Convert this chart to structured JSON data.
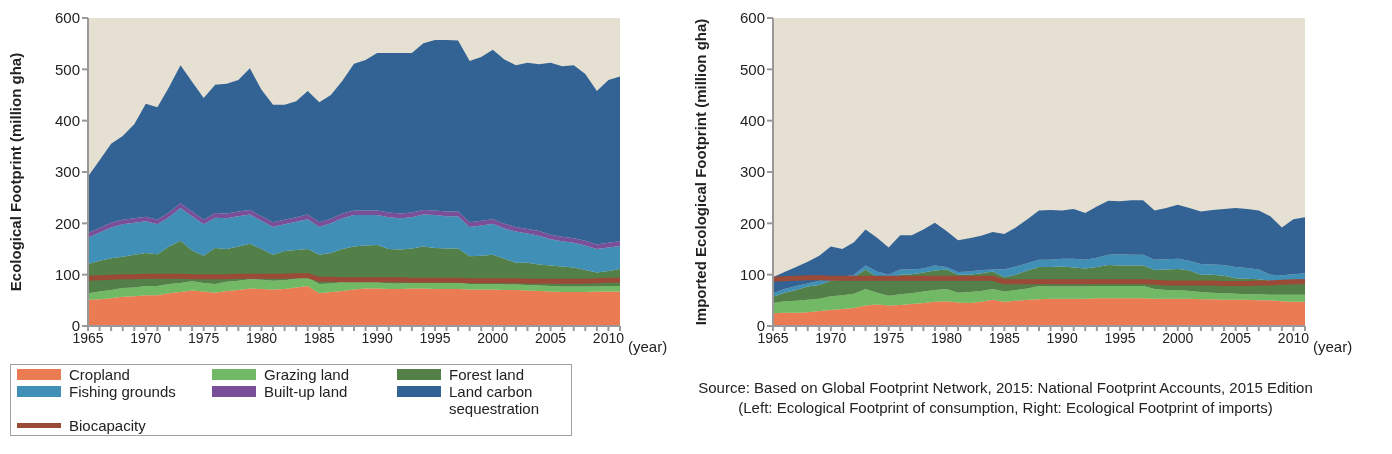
{
  "chart_data": [
    {
      "type": "area",
      "stacked": true,
      "xlabel": "(year)",
      "ylabel": "Ecological Footprint (million gha)",
      "legend": "bottom",
      "x": [
        1965,
        1966,
        1967,
        1968,
        1969,
        1970,
        1971,
        1972,
        1973,
        1974,
        1975,
        1976,
        1977,
        1978,
        1979,
        1980,
        1981,
        1982,
        1983,
        1984,
        1985,
        1986,
        1987,
        1988,
        1989,
        1990,
        1991,
        1992,
        1993,
        1994,
        1995,
        1996,
        1997,
        1998,
        1999,
        2000,
        2001,
        2002,
        2003,
        2004,
        2005,
        2006,
        2007,
        2008,
        2009,
        2010,
        2011
      ],
      "xlim": [
        1965,
        2011
      ],
      "xticks": [
        1965,
        {
          "value": 1966,
          "label": null
        },
        {
          "value": 1967,
          "label": null
        },
        {
          "value": 1968,
          "label": null
        },
        {
          "value": 1969,
          "label": null
        },
        1970,
        {
          "value": 1971,
          "label": null
        },
        {
          "value": 1972,
          "label": null
        },
        {
          "value": 1973,
          "label": null
        },
        {
          "value": 1974,
          "label": null
        },
        1975,
        {
          "value": 1976,
          "label": null
        },
        {
          "value": 1977,
          "label": null
        },
        {
          "value": 1978,
          "label": null
        },
        {
          "value": 1979,
          "label": null
        },
        1980,
        {
          "value": 1981,
          "label": null
        },
        {
          "value": 1982,
          "label": null
        },
        {
          "value": 1983,
          "label": null
        },
        {
          "value": 1984,
          "label": null
        },
        1985,
        {
          "value": 1986,
          "label": null
        },
        {
          "value": 1987,
          "label": null
        },
        {
          "value": 1988,
          "label": null
        },
        {
          "value": 1989,
          "label": null
        },
        1990,
        {
          "value": 1991,
          "label": null
        },
        {
          "value": 1992,
          "label": null
        },
        {
          "value": 1993,
          "label": null
        },
        {
          "value": 1994,
          "label": null
        },
        1995,
        {
          "value": 1996,
          "label": null
        },
        {
          "value": 1997,
          "label": null
        },
        {
          "value": 1998,
          "label": null
        },
        {
          "value": 1999,
          "label": null
        },
        2000,
        {
          "value": 2001,
          "label": null
        },
        {
          "value": 2002,
          "label": null
        },
        {
          "value": 2003,
          "label": null
        },
        {
          "value": 2004,
          "label": null
        },
        2005,
        {
          "value": 2006,
          "label": null
        },
        {
          "value": 2007,
          "label": null
        },
        {
          "value": 2008,
          "label": null
        },
        {
          "value": 2009,
          "label": null
        },
        2010,
        {
          "value": 2011,
          "label": null
        }
      ],
      "ylim": [
        0,
        600
      ],
      "yticks": [
        0,
        100,
        200,
        300,
        400,
        500,
        600
      ],
      "series": [
        {
          "name": "Cropland",
          "color": "#eb7b52",
          "values": [
            51,
            52,
            54,
            57,
            58,
            60,
            60,
            64,
            66,
            69,
            67,
            65,
            68,
            70,
            73,
            72,
            71,
            72,
            75,
            78,
            64,
            66,
            68,
            71,
            73,
            73,
            72,
            72,
            73,
            73,
            72,
            72,
            72,
            71,
            71,
            71,
            70,
            70,
            69,
            68,
            67,
            66,
            66,
            66,
            67,
            67,
            67
          ]
        },
        {
          "name": "Grazing land",
          "color": "#72b965",
          "values": [
            13,
            15,
            16,
            17,
            17,
            18,
            18,
            18,
            18,
            18,
            17,
            17,
            18,
            18,
            18,
            18,
            17,
            17,
            17,
            17,
            18,
            17,
            17,
            14,
            12,
            12,
            11,
            11,
            11,
            11,
            12,
            12,
            12,
            11,
            11,
            11,
            11,
            11,
            11,
            11,
            11,
            11,
            11,
            11,
            10,
            11,
            11
          ]
        },
        {
          "name": "Forest land",
          "color": "#528048",
          "values": [
            57,
            60,
            62,
            61,
            64,
            64,
            62,
            73,
            82,
            60,
            53,
            70,
            64,
            67,
            69,
            60,
            51,
            57,
            56,
            55,
            57,
            59,
            65,
            70,
            72,
            73,
            67,
            66,
            67,
            71,
            68,
            67,
            67,
            54,
            55,
            57,
            50,
            42,
            43,
            41,
            40,
            39,
            37,
            32,
            27,
            29,
            33
          ]
        },
        {
          "name": "Fishing grounds",
          "color": "#3f8fb7",
          "values": [
            51,
            55,
            60,
            63,
            62,
            62,
            58,
            57,
            64,
            67,
            61,
            59,
            60,
            59,
            57,
            55,
            54,
            52,
            55,
            58,
            54,
            58,
            60,
            61,
            59,
            58,
            62,
            61,
            61,
            62,
            64,
            63,
            63,
            57,
            59,
            60,
            59,
            61,
            57,
            56,
            51,
            49,
            48,
            48,
            46,
            46,
            45
          ]
        },
        {
          "name": "Built-up land",
          "color": "#7a4f9a",
          "values": [
            9,
            9,
            9,
            9,
            9,
            9,
            9,
            9,
            9,
            9,
            9,
            9,
            9,
            9,
            9,
            9,
            9,
            9,
            9,
            9,
            9,
            9,
            9,
            9,
            9,
            9,
            9,
            9,
            9,
            9,
            9,
            9,
            9,
            9,
            9,
            9,
            9,
            9,
            9,
            9,
            9,
            9,
            9,
            9,
            9,
            9,
            9
          ]
        },
        {
          "name": "Land carbon sequestration",
          "color": "#336294",
          "values": [
            110,
            132,
            154,
            163,
            183,
            220,
            219,
            244,
            269,
            253,
            237,
            250,
            253,
            256,
            276,
            246,
            229,
            224,
            226,
            241,
            234,
            241,
            259,
            286,
            293,
            307,
            311,
            313,
            311,
            325,
            332,
            334,
            333,
            314,
            319,
            330,
            320,
            315,
            324,
            325,
            335,
            332,
            337,
            325,
            299,
            317,
            321
          ]
        },
        {
          "name": "Biocapacity",
          "type": "line",
          "color": "#9c4a38",
          "values": [
            93,
            94,
            95,
            96,
            96,
            97,
            97,
            97,
            97,
            96,
            96,
            96,
            96,
            97,
            97,
            97,
            97,
            97,
            98,
            98,
            91,
            91,
            90,
            90,
            90,
            90,
            90,
            90,
            89,
            89,
            89,
            89,
            89,
            88,
            88,
            88,
            88,
            88,
            87,
            87,
            87,
            87,
            87,
            87,
            88,
            89,
            89
          ]
        }
      ]
    },
    {
      "type": "area",
      "stacked": true,
      "xlabel": "(year)",
      "ylabel": "Imported Ecological Footprint (million gha)",
      "annotations": [
        "Source: Based on Global Footprint Network, 2015: National Footprint Accounts, 2015 Edition",
        "(Left: Ecological Footprint of consumption, Right: Ecological Footprint of imports)"
      ],
      "x": [
        1965,
        1966,
        1967,
        1968,
        1969,
        1970,
        1971,
        1972,
        1973,
        1974,
        1975,
        1976,
        1977,
        1978,
        1979,
        1980,
        1981,
        1982,
        1983,
        1984,
        1985,
        1986,
        1987,
        1988,
        1989,
        1990,
        1991,
        1992,
        1993,
        1994,
        1995,
        1996,
        1997,
        1998,
        1999,
        2000,
        2001,
        2002,
        2003,
        2004,
        2005,
        2006,
        2007,
        2008,
        2009,
        2010,
        2011
      ],
      "xlim": [
        1965,
        2011
      ],
      "xticks": [
        1965,
        {
          "value": 1966,
          "label": null
        },
        {
          "value": 1967,
          "label": null
        },
        {
          "value": 1968,
          "label": null
        },
        {
          "value": 1969,
          "label": null
        },
        1970,
        {
          "value": 1971,
          "label": null
        },
        {
          "value": 1972,
          "label": null
        },
        {
          "value": 1973,
          "label": null
        },
        {
          "value": 1974,
          "label": null
        },
        1975,
        {
          "value": 1976,
          "label": null
        },
        {
          "value": 1977,
          "label": null
        },
        {
          "value": 1978,
          "label": null
        },
        {
          "value": 1979,
          "label": null
        },
        1980,
        {
          "value": 1981,
          "label": null
        },
        {
          "value": 1982,
          "label": null
        },
        {
          "value": 1983,
          "label": null
        },
        {
          "value": 1984,
          "label": null
        },
        1985,
        {
          "value": 1986,
          "label": null
        },
        {
          "value": 1987,
          "label": null
        },
        {
          "value": 1988,
          "label": null
        },
        {
          "value": 1989,
          "label": null
        },
        1990,
        {
          "value": 1991,
          "label": null
        },
        {
          "value": 1992,
          "label": null
        },
        {
          "value": 1993,
          "label": null
        },
        {
          "value": 1994,
          "label": null
        },
        1995,
        {
          "value": 1996,
          "label": null
        },
        {
          "value": 1997,
          "label": null
        },
        {
          "value": 1998,
          "label": null
        },
        {
          "value": 1999,
          "label": null
        },
        2000,
        {
          "value": 2001,
          "label": null
        },
        {
          "value": 2002,
          "label": null
        },
        {
          "value": 2003,
          "label": null
        },
        {
          "value": 2004,
          "label": null
        },
        2005,
        {
          "value": 2006,
          "label": null
        },
        {
          "value": 2007,
          "label": null
        },
        {
          "value": 2008,
          "label": null
        },
        {
          "value": 2009,
          "label": null
        },
        2010,
        {
          "value": 2011,
          "label": null
        }
      ],
      "ylim": [
        0,
        600
      ],
      "yticks": [
        0,
        100,
        200,
        300,
        400,
        500,
        600
      ],
      "series": [
        {
          "color": "#eb7b52",
          "values": [
            25,
            26,
            26,
            27,
            29,
            31,
            33,
            35,
            40,
            42,
            40,
            41,
            43,
            45,
            47,
            48,
            46,
            45,
            47,
            51,
            47,
            49,
            51,
            52,
            53,
            53,
            53,
            53,
            54,
            54,
            54,
            54,
            54,
            53,
            53,
            53,
            53,
            52,
            52,
            51,
            51,
            51,
            50,
            50,
            48,
            47,
            47
          ]
        },
        {
          "color": "#72b965",
          "values": [
            20,
            22,
            23,
            24,
            24,
            27,
            27,
            28,
            32,
            23,
            19,
            21,
            21,
            22,
            23,
            24,
            19,
            21,
            21,
            21,
            20,
            21,
            22,
            26,
            24,
            24,
            24,
            24,
            24,
            24,
            24,
            24,
            24,
            19,
            17,
            17,
            15,
            14,
            13,
            13,
            12,
            11,
            12,
            11,
            13,
            14,
            14
          ]
        },
        {
          "color": "#528048",
          "values": [
            12,
            17,
            21,
            26,
            27,
            30,
            30,
            32,
            38,
            30,
            32,
            38,
            37,
            37,
            38,
            38,
            35,
            34,
            35,
            34,
            28,
            30,
            35,
            37,
            38,
            39,
            37,
            35,
            37,
            41,
            40,
            40,
            40,
            37,
            40,
            41,
            40,
            34,
            35,
            34,
            30,
            30,
            29,
            27,
            23,
            23,
            24
          ]
        },
        {
          "color": "#3f8fb7",
          "values": [
            7,
            7,
            8,
            6,
            8,
            9,
            6,
            5,
            8,
            11,
            9,
            10,
            9,
            8,
            10,
            5,
            5,
            6,
            6,
            4,
            15,
            16,
            14,
            14,
            14,
            15,
            17,
            17,
            18,
            20,
            22,
            21,
            21,
            20,
            20,
            20,
            19,
            21,
            20,
            21,
            22,
            21,
            19,
            12,
            15,
            17,
            18
          ]
        },
        {
          "color": "#336294",
          "values": [
            31,
            33,
            37,
            42,
            49,
            58,
            54,
            63,
            70,
            66,
            53,
            67,
            67,
            76,
            83,
            70,
            62,
            65,
            67,
            73,
            69,
            76,
            86,
            96,
            97,
            94,
            97,
            91,
            100,
            105,
            103,
            106,
            106,
            96,
            100,
            105,
            103,
            102,
            106,
            109,
            115,
            115,
            115,
            114,
            93,
            107,
            109
          ]
        },
        {
          "type": "line",
          "color": "#9c4a38",
          "values": [
            91,
            92,
            93,
            94,
            94,
            93,
            93,
            93,
            93,
            93,
            93,
            93,
            93,
            93,
            93,
            93,
            93,
            93,
            93,
            93,
            86,
            86,
            86,
            86,
            86,
            86,
            86,
            86,
            86,
            86,
            86,
            86,
            86,
            85,
            84,
            84,
            84,
            84,
            84,
            83,
            83,
            83,
            84,
            84,
            85,
            86,
            86
          ]
        }
      ]
    }
  ]
}
